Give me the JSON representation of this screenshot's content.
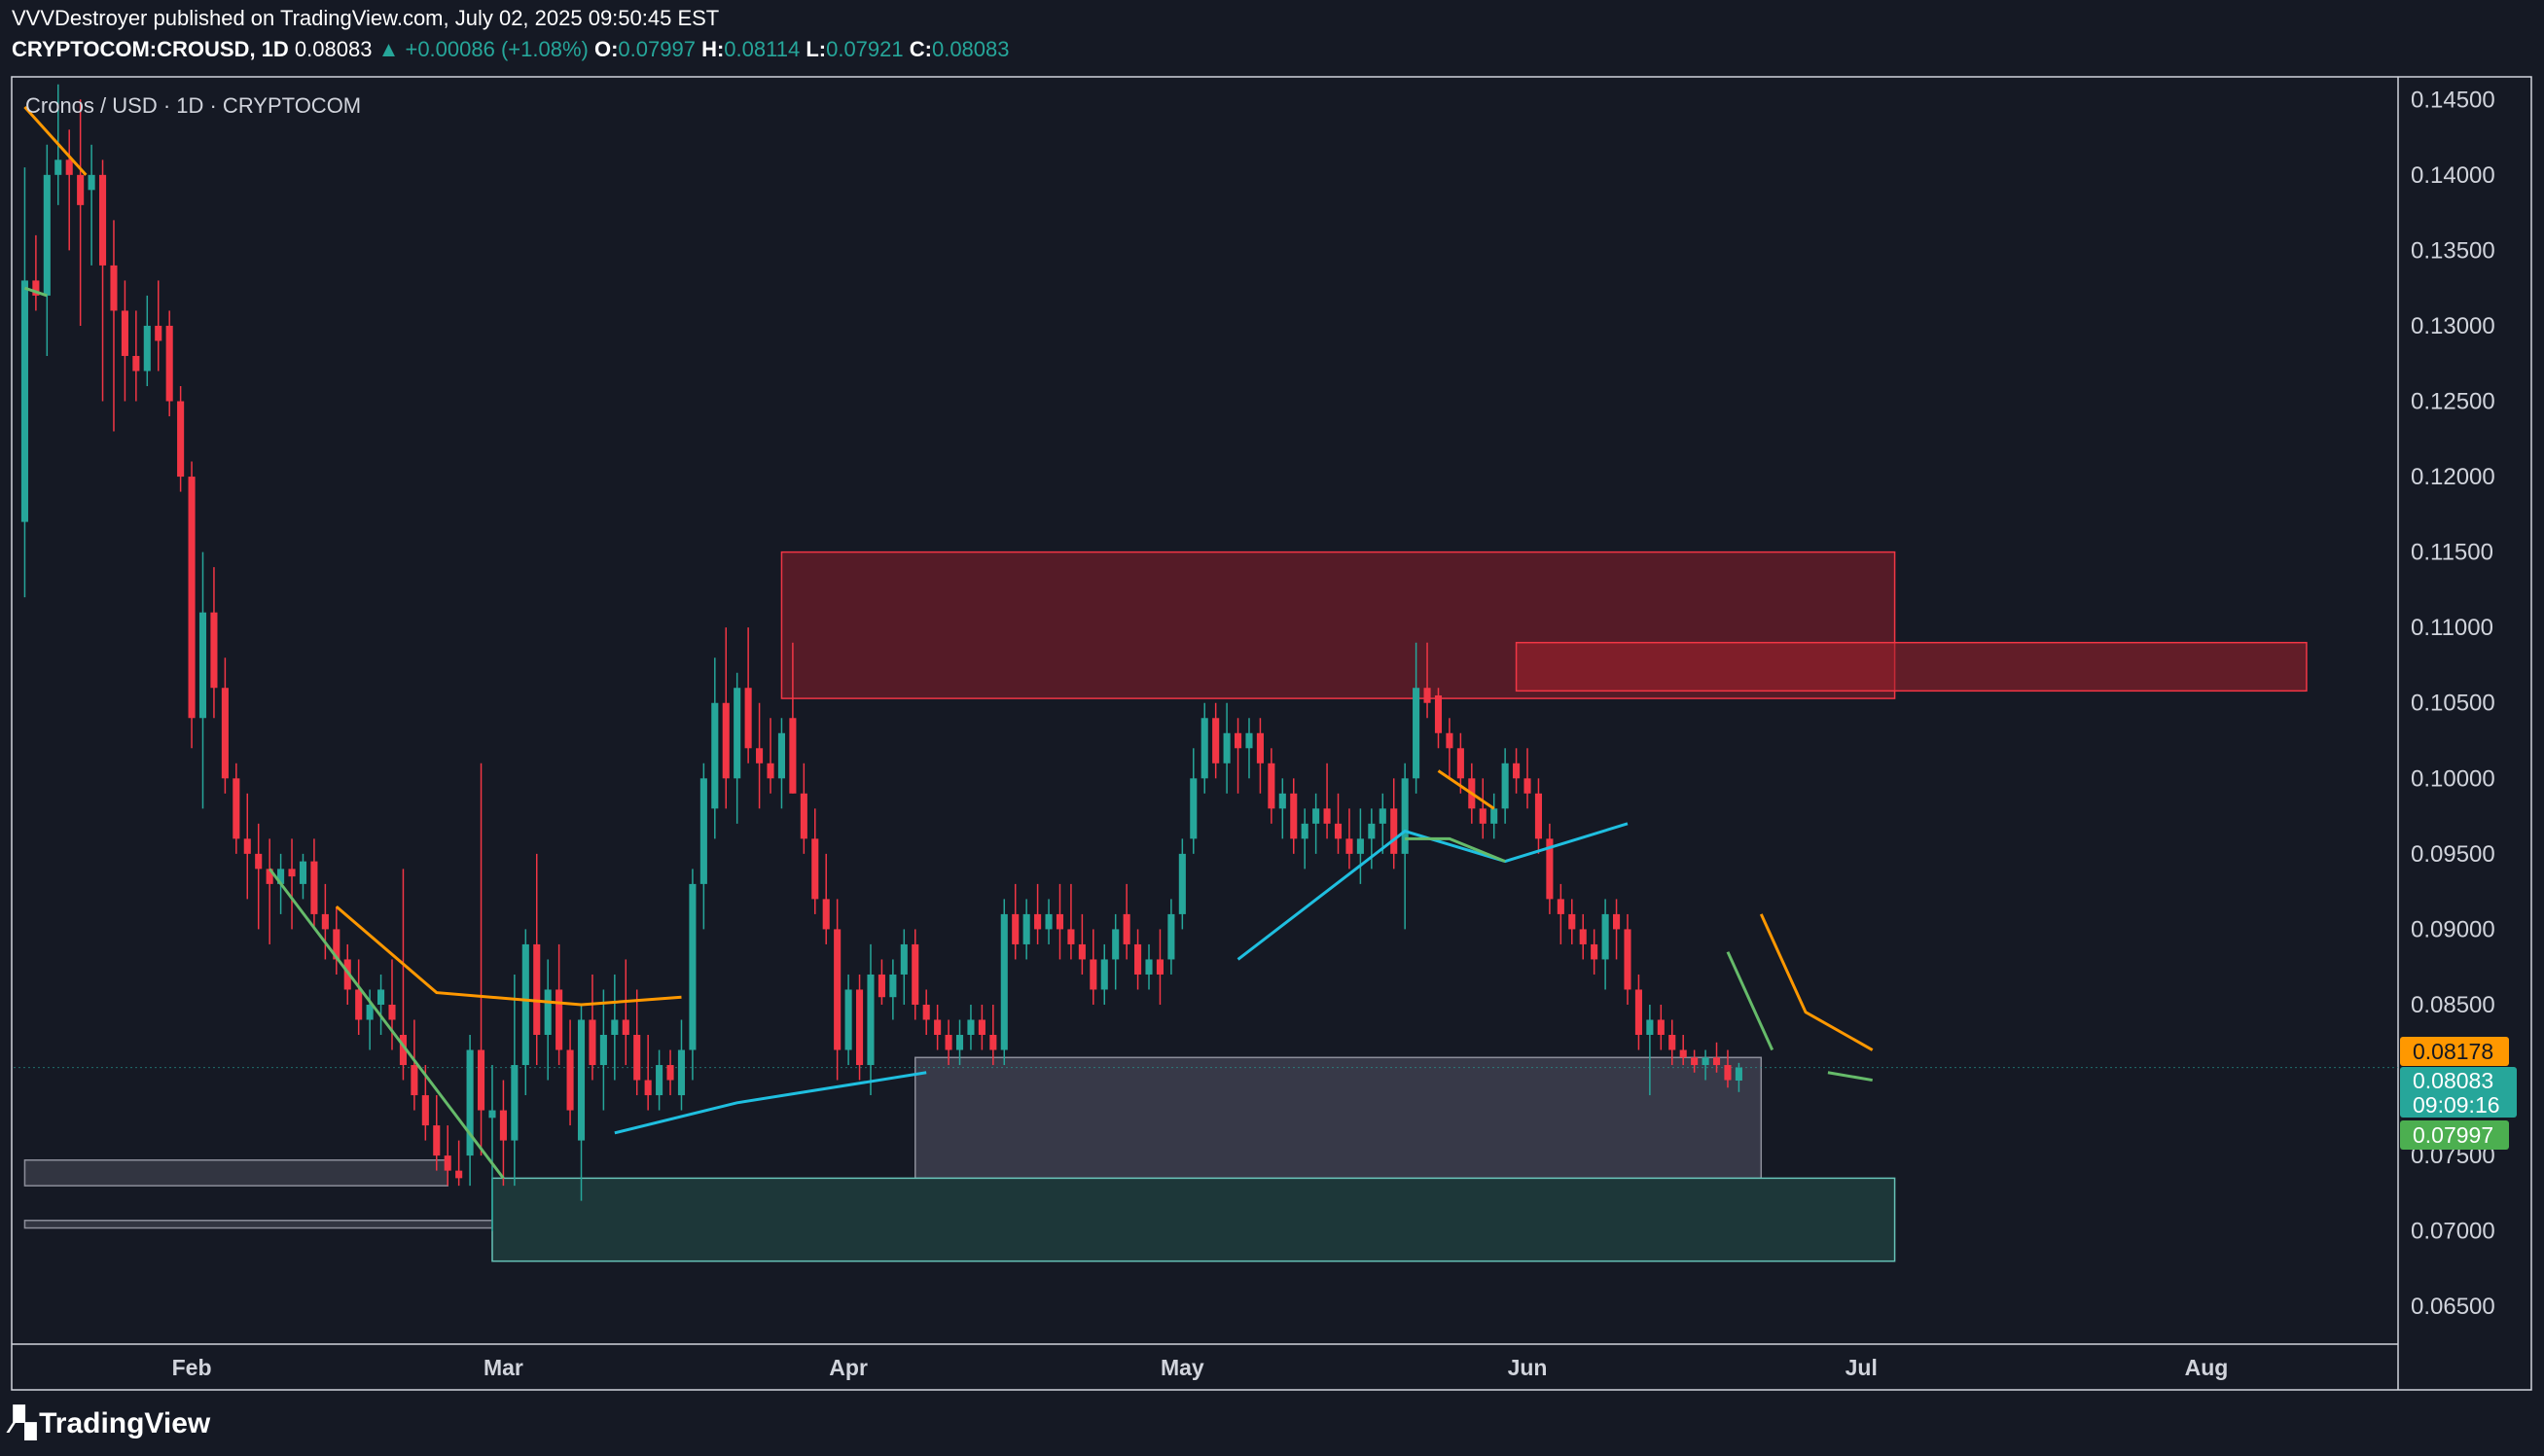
{
  "header": {
    "publisher": "VVVDestroyer published on TradingView.com, July 02, 2025 09:50:45 EST",
    "symbol": "CRYPTOCOM:CROUSD, 1D",
    "last": "0.08083",
    "change": "▲ +0.00086 (+1.08%)",
    "o_label": "O:",
    "o": "0.07997",
    "h_label": "H:",
    "h": "0.08114",
    "l_label": "L:",
    "l": "0.07921",
    "c_label": "C:",
    "c": "0.08083"
  },
  "legend": {
    "title": "Cronos / USD · 1D · CRYPTOCOM"
  },
  "price_tags": {
    "orange": "0.08178",
    "current": "0.08083",
    "countdown": "09:09:16",
    "green": "0.07997"
  },
  "footer": {
    "brand": "TradingView"
  },
  "colors": {
    "background": "#151924",
    "up": "#26a69a",
    "down": "#f23645",
    "orange": "#ff9800",
    "cyan": "#1fbfe0",
    "green_line": "#66bb6a",
    "supply_zone": "#a3202c",
    "demand_zone": "#4a4c5c",
    "teal_zone": "#26a69a"
  },
  "chart_data": {
    "type": "candlestick",
    "title": "Cronos / USD · 1D · CRYPTOCOM",
    "ylim": [
      0.0625,
      0.1465
    ],
    "x_start": "2025-01-17",
    "x_end": "2025-08-17",
    "y_ticks": [
      "0.14500",
      "0.14000",
      "0.13500",
      "0.13000",
      "0.12500",
      "0.12000",
      "0.11500",
      "0.11000",
      "0.10500",
      "0.10000",
      "0.09500",
      "0.09000",
      "0.08500",
      "0.08000",
      "0.07500",
      "0.07000",
      "0.06500"
    ],
    "x_ticks": [
      {
        "label": "Feb",
        "day": 15
      },
      {
        "label": "Mar",
        "day": 43
      },
      {
        "label": "Apr",
        "day": 74
      },
      {
        "label": "May",
        "day": 104
      },
      {
        "label": "Jun",
        "day": 135
      },
      {
        "label": "Jul",
        "day": 165
      },
      {
        "label": "Aug",
        "day": 196
      }
    ],
    "candles": [
      [
        0.117,
        0.1405,
        0.112,
        0.133
      ],
      [
        0.133,
        0.136,
        0.131,
        0.132
      ],
      [
        0.132,
        0.142,
        0.128,
        0.14
      ],
      [
        0.14,
        0.146,
        0.138,
        0.141
      ],
      [
        0.141,
        0.143,
        0.135,
        0.14
      ],
      [
        0.14,
        0.145,
        0.13,
        0.138
      ],
      [
        0.139,
        0.142,
        0.134,
        0.14
      ],
      [
        0.14,
        0.141,
        0.125,
        0.134
      ],
      [
        0.134,
        0.137,
        0.123,
        0.131
      ],
      [
        0.131,
        0.133,
        0.125,
        0.128
      ],
      [
        0.128,
        0.131,
        0.125,
        0.127
      ],
      [
        0.127,
        0.132,
        0.126,
        0.13
      ],
      [
        0.13,
        0.133,
        0.127,
        0.129
      ],
      [
        0.13,
        0.131,
        0.124,
        0.125
      ],
      [
        0.125,
        0.126,
        0.119,
        0.12
      ],
      [
        0.12,
        0.121,
        0.102,
        0.104
      ],
      [
        0.104,
        0.115,
        0.098,
        0.111
      ],
      [
        0.111,
        0.114,
        0.104,
        0.106
      ],
      [
        0.106,
        0.108,
        0.099,
        0.1
      ],
      [
        0.1,
        0.101,
        0.095,
        0.096
      ],
      [
        0.096,
        0.099,
        0.092,
        0.095
      ],
      [
        0.095,
        0.097,
        0.09,
        0.094
      ],
      [
        0.094,
        0.096,
        0.089,
        0.093
      ],
      [
        0.093,
        0.095,
        0.091,
        0.094
      ],
      [
        0.094,
        0.096,
        0.09,
        0.0935
      ],
      [
        0.093,
        0.095,
        0.092,
        0.0945
      ],
      [
        0.0945,
        0.096,
        0.09,
        0.091
      ],
      [
        0.091,
        0.093,
        0.088,
        0.09
      ],
      [
        0.09,
        0.0915,
        0.087,
        0.088
      ],
      [
        0.088,
        0.089,
        0.085,
        0.086
      ],
      [
        0.086,
        0.088,
        0.083,
        0.084
      ],
      [
        0.084,
        0.086,
        0.082,
        0.085
      ],
      [
        0.085,
        0.087,
        0.083,
        0.086
      ],
      [
        0.085,
        0.088,
        0.082,
        0.084
      ],
      [
        0.083,
        0.094,
        0.08,
        0.081
      ],
      [
        0.081,
        0.084,
        0.078,
        0.079
      ],
      [
        0.079,
        0.081,
        0.076,
        0.077
      ],
      [
        0.077,
        0.079,
        0.074,
        0.075
      ],
      [
        0.075,
        0.077,
        0.073,
        0.074
      ],
      [
        0.074,
        0.076,
        0.073,
        0.0735
      ],
      [
        0.075,
        0.083,
        0.073,
        0.082
      ],
      [
        0.082,
        0.101,
        0.075,
        0.078
      ],
      [
        0.0775,
        0.081,
        0.07,
        0.078
      ],
      [
        0.078,
        0.08,
        0.073,
        0.076
      ],
      [
        0.076,
        0.087,
        0.073,
        0.081
      ],
      [
        0.081,
        0.09,
        0.079,
        0.089
      ],
      [
        0.089,
        0.095,
        0.081,
        0.083
      ],
      [
        0.083,
        0.088,
        0.08,
        0.086
      ],
      [
        0.086,
        0.089,
        0.081,
        0.082
      ],
      [
        0.082,
        0.084,
        0.077,
        0.078
      ],
      [
        0.076,
        0.085,
        0.072,
        0.084
      ],
      [
        0.084,
        0.087,
        0.08,
        0.081
      ],
      [
        0.081,
        0.086,
        0.078,
        0.083
      ],
      [
        0.083,
        0.087,
        0.08,
        0.084
      ],
      [
        0.084,
        0.088,
        0.081,
        0.083
      ],
      [
        0.083,
        0.086,
        0.079,
        0.08
      ],
      [
        0.08,
        0.083,
        0.078,
        0.079
      ],
      [
        0.079,
        0.082,
        0.078,
        0.081
      ],
      [
        0.081,
        0.082,
        0.079,
        0.08
      ],
      [
        0.079,
        0.084,
        0.078,
        0.082
      ],
      [
        0.082,
        0.094,
        0.08,
        0.093
      ],
      [
        0.093,
        0.101,
        0.09,
        0.1
      ],
      [
        0.098,
        0.108,
        0.096,
        0.105
      ],
      [
        0.105,
        0.11,
        0.098,
        0.1
      ],
      [
        0.1,
        0.107,
        0.097,
        0.106
      ],
      [
        0.106,
        0.11,
        0.101,
        0.102
      ],
      [
        0.102,
        0.105,
        0.098,
        0.101
      ],
      [
        0.101,
        0.104,
        0.099,
        0.1
      ],
      [
        0.1,
        0.104,
        0.098,
        0.103
      ],
      [
        0.104,
        0.109,
        0.099,
        0.099
      ],
      [
        0.099,
        0.101,
        0.095,
        0.096
      ],
      [
        0.096,
        0.098,
        0.091,
        0.092
      ],
      [
        0.092,
        0.095,
        0.089,
        0.09
      ],
      [
        0.09,
        0.092,
        0.08,
        0.082
      ],
      [
        0.082,
        0.087,
        0.081,
        0.086
      ],
      [
        0.086,
        0.087,
        0.08,
        0.081
      ],
      [
        0.081,
        0.089,
        0.079,
        0.087
      ],
      [
        0.087,
        0.088,
        0.085,
        0.0855
      ],
      [
        0.0855,
        0.088,
        0.084,
        0.087
      ],
      [
        0.087,
        0.09,
        0.085,
        0.089
      ],
      [
        0.089,
        0.09,
        0.084,
        0.085
      ],
      [
        0.085,
        0.086,
        0.083,
        0.084
      ],
      [
        0.084,
        0.085,
        0.082,
        0.083
      ],
      [
        0.083,
        0.084,
        0.081,
        0.082
      ],
      [
        0.082,
        0.084,
        0.081,
        0.083
      ],
      [
        0.083,
        0.085,
        0.082,
        0.084
      ],
      [
        0.084,
        0.085,
        0.082,
        0.083
      ],
      [
        0.083,
        0.085,
        0.081,
        0.082
      ],
      [
        0.082,
        0.092,
        0.081,
        0.091
      ],
      [
        0.091,
        0.093,
        0.088,
        0.089
      ],
      [
        0.089,
        0.092,
        0.088,
        0.091
      ],
      [
        0.091,
        0.093,
        0.089,
        0.09
      ],
      [
        0.09,
        0.092,
        0.089,
        0.091
      ],
      [
        0.091,
        0.093,
        0.088,
        0.09
      ],
      [
        0.09,
        0.093,
        0.088,
        0.089
      ],
      [
        0.089,
        0.091,
        0.087,
        0.088
      ],
      [
        0.088,
        0.09,
        0.085,
        0.086
      ],
      [
        0.086,
        0.089,
        0.085,
        0.088
      ],
      [
        0.088,
        0.091,
        0.086,
        0.09
      ],
      [
        0.091,
        0.093,
        0.088,
        0.089
      ],
      [
        0.089,
        0.09,
        0.086,
        0.087
      ],
      [
        0.087,
        0.089,
        0.086,
        0.088
      ],
      [
        0.088,
        0.09,
        0.085,
        0.087
      ],
      [
        0.088,
        0.092,
        0.087,
        0.091
      ],
      [
        0.091,
        0.096,
        0.09,
        0.095
      ],
      [
        0.096,
        0.102,
        0.095,
        0.1
      ],
      [
        0.1,
        0.105,
        0.099,
        0.104
      ],
      [
        0.104,
        0.105,
        0.1,
        0.101
      ],
      [
        0.101,
        0.105,
        0.099,
        0.103
      ],
      [
        0.103,
        0.104,
        0.099,
        0.102
      ],
      [
        0.102,
        0.104,
        0.1,
        0.103
      ],
      [
        0.103,
        0.104,
        0.099,
        0.101
      ],
      [
        0.101,
        0.102,
        0.097,
        0.098
      ],
      [
        0.098,
        0.1,
        0.096,
        0.099
      ],
      [
        0.099,
        0.1,
        0.095,
        0.096
      ],
      [
        0.096,
        0.098,
        0.094,
        0.097
      ],
      [
        0.097,
        0.099,
        0.095,
        0.098
      ],
      [
        0.098,
        0.101,
        0.096,
        0.097
      ],
      [
        0.097,
        0.099,
        0.095,
        0.096
      ],
      [
        0.096,
        0.098,
        0.094,
        0.095
      ],
      [
        0.095,
        0.098,
        0.093,
        0.096
      ],
      [
        0.096,
        0.098,
        0.094,
        0.097
      ],
      [
        0.097,
        0.099,
        0.095,
        0.098
      ],
      [
        0.098,
        0.1,
        0.094,
        0.095
      ],
      [
        0.095,
        0.101,
        0.09,
        0.1
      ],
      [
        0.1,
        0.109,
        0.099,
        0.106
      ],
      [
        0.106,
        0.109,
        0.104,
        0.105
      ],
      [
        0.1055,
        0.106,
        0.102,
        0.103
      ],
      [
        0.103,
        0.104,
        0.1,
        0.102
      ],
      [
        0.102,
        0.103,
        0.099,
        0.1
      ],
      [
        0.1,
        0.101,
        0.097,
        0.098
      ],
      [
        0.098,
        0.1,
        0.096,
        0.097
      ],
      [
        0.097,
        0.099,
        0.096,
        0.098
      ],
      [
        0.098,
        0.102,
        0.097,
        0.101
      ],
      [
        0.101,
        0.102,
        0.099,
        0.1
      ],
      [
        0.1,
        0.102,
        0.098,
        0.099
      ],
      [
        0.099,
        0.1,
        0.095,
        0.096
      ],
      [
        0.096,
        0.097,
        0.091,
        0.092
      ],
      [
        0.092,
        0.093,
        0.089,
        0.091
      ],
      [
        0.091,
        0.092,
        0.089,
        0.09
      ],
      [
        0.09,
        0.091,
        0.088,
        0.089
      ],
      [
        0.089,
        0.09,
        0.087,
        0.088
      ],
      [
        0.088,
        0.092,
        0.086,
        0.091
      ],
      [
        0.091,
        0.092,
        0.088,
        0.09
      ],
      [
        0.09,
        0.091,
        0.085,
        0.086
      ],
      [
        0.086,
        0.087,
        0.082,
        0.083
      ],
      [
        0.083,
        0.085,
        0.079,
        0.084
      ],
      [
        0.084,
        0.085,
        0.082,
        0.083
      ],
      [
        0.083,
        0.084,
        0.081,
        0.082
      ],
      [
        0.082,
        0.083,
        0.081,
        0.0815
      ],
      [
        0.0815,
        0.082,
        0.0805,
        0.081
      ],
      [
        0.081,
        0.082,
        0.08,
        0.0815
      ],
      [
        0.0815,
        0.0825,
        0.0805,
        0.081
      ],
      [
        0.081,
        0.082,
        0.0795,
        0.08
      ],
      [
        0.07997,
        0.08114,
        0.07921,
        0.08083
      ]
    ],
    "zones": [
      {
        "name": "supply-zone-upper",
        "start_day": 68,
        "end_day": 168,
        "low": 0.1053,
        "high": 0.115
      },
      {
        "name": "supply-zone-lower",
        "start_day": 134,
        "end_day": 205,
        "low": 0.1058,
        "high": 0.109
      },
      {
        "name": "demand-zone-gray",
        "start_day": 80,
        "end_day": 156,
        "low": 0.0735,
        "high": 0.0815
      },
      {
        "name": "demand-zone-teal",
        "start_day": 42,
        "end_day": 168,
        "low": 0.068,
        "high": 0.0735
      },
      {
        "name": "left-gray-zone-1",
        "start_day": 0,
        "end_day": 38,
        "low": 0.073,
        "high": 0.0747
      },
      {
        "name": "left-gray-zone-2",
        "start_day": 0,
        "end_day": 42,
        "low": 0.0702,
        "high": 0.0707
      }
    ],
    "trendlines": [
      {
        "color": "orange",
        "points": [
          [
            0,
            0.1445
          ],
          [
            5.5,
            0.14
          ]
        ]
      },
      {
        "color": "green",
        "points": [
          [
            0,
            0.1325
          ],
          [
            2,
            0.132
          ]
        ]
      },
      {
        "color": "green",
        "points": [
          [
            22,
            0.094
          ],
          [
            43,
            0.0735
          ]
        ]
      },
      {
        "color": "orange",
        "points": [
          [
            28,
            0.0915
          ],
          [
            37,
            0.0858
          ],
          [
            50,
            0.085
          ],
          [
            59,
            0.0855
          ]
        ]
      },
      {
        "color": "cyan",
        "points": [
          [
            53,
            0.0765
          ],
          [
            64,
            0.0785
          ],
          [
            81,
            0.0805
          ]
        ]
      },
      {
        "color": "cyan",
        "points": [
          [
            109,
            0.088
          ],
          [
            124,
            0.0965
          ],
          [
            133,
            0.0945
          ],
          [
            144,
            0.097
          ]
        ]
      },
      {
        "color": "orange",
        "points": [
          [
            127,
            0.1005
          ],
          [
            132,
            0.098
          ]
        ]
      },
      {
        "color": "green",
        "points": [
          [
            124,
            0.096
          ],
          [
            128,
            0.096
          ],
          [
            133,
            0.0945
          ]
        ]
      },
      {
        "color": "orange",
        "points": [
          [
            156,
            0.091
          ],
          [
            160,
            0.0845
          ],
          [
            166,
            0.082
          ]
        ]
      },
      {
        "color": "green",
        "points": [
          [
            153,
            0.0885
          ],
          [
            157,
            0.082
          ]
        ]
      },
      {
        "color": "green",
        "points": [
          [
            162,
            0.0805
          ],
          [
            166,
            0.08
          ]
        ]
      }
    ]
  }
}
